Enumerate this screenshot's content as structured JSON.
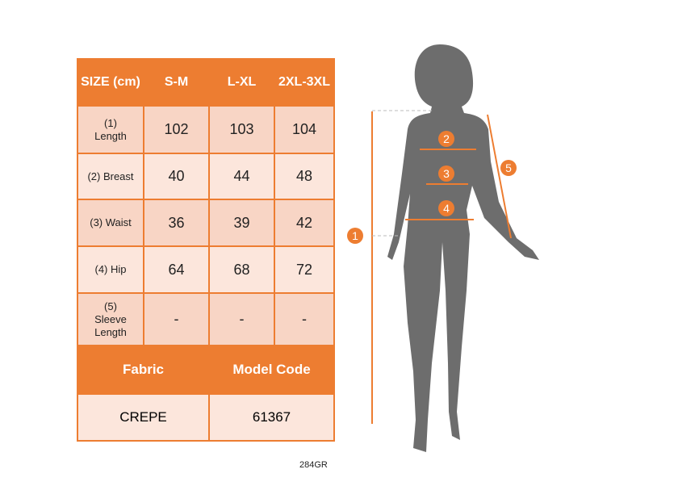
{
  "size_table": {
    "header": [
      "SIZE (cm)",
      "S-M",
      "L-XL",
      "2XL-3XL"
    ],
    "rows": [
      {
        "label": "(1) Length",
        "values": [
          "102",
          "103",
          "104"
        ]
      },
      {
        "label": "(2) Breast",
        "values": [
          "40",
          "44",
          "48"
        ]
      },
      {
        "label": "(3) Waist",
        "values": [
          "36",
          "39",
          "42"
        ]
      },
      {
        "label": "(4) Hip",
        "values": [
          "64",
          "68",
          "72"
        ]
      },
      {
        "label": "(5) Sleeve Length",
        "values": [
          "-",
          "-",
          "-"
        ]
      }
    ],
    "fabric_label": "Fabric",
    "model_code_label": "Model Code",
    "fabric_value": "CREPE",
    "model_code_value": "61367"
  },
  "figure": {
    "markers": [
      "1",
      "2",
      "3",
      "4",
      "5"
    ],
    "accent_color": "#ed7d31",
    "silhouette_color": "#6d6d6d"
  },
  "footer_code": "284GR"
}
